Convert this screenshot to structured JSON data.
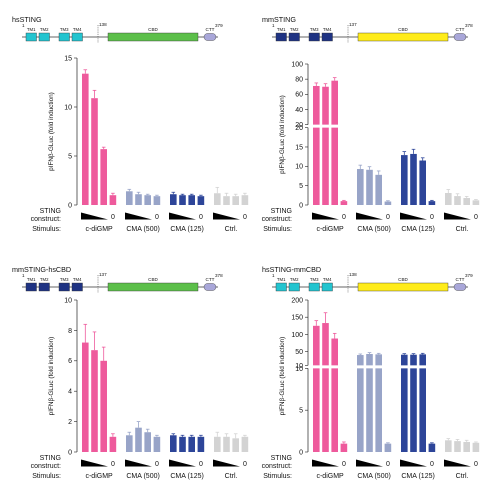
{
  "colors": {
    "cyan": "#22c4cf",
    "navy": "#1f3383",
    "green": "#5cbf4a",
    "yellow": "#ffec1a",
    "lavender": "#a9a7d9",
    "pink": "#ee5a9c",
    "slate": "#98a4c8",
    "blue": "#2d4599",
    "grey": "#d3d3d3"
  },
  "chart_data": [
    {
      "type": "bar",
      "construct": "hsSTING",
      "domains": {
        "tm": [
          "TM1",
          "TM2",
          "TM3",
          "TM4"
        ],
        "tm_colors": [
          "cyan",
          "cyan",
          "cyan",
          "cyan"
        ],
        "cbd_label": "CBD",
        "cbd_color": "green",
        "ctt_label": "CTT",
        "start": "1",
        "cut": "138",
        "end": "379"
      },
      "ylabel": "pIFNβ-GLuc (fold induction)",
      "yticks": [
        "0",
        "5",
        "10",
        "15"
      ],
      "ylim": [
        0,
        15
      ],
      "broken_axis": false,
      "groups": [
        {
          "name": "c-diGMP",
          "color": "pink",
          "values": [
            13.4,
            10.9,
            5.7,
            1.0
          ],
          "errors": [
            0.4,
            0.8,
            0.2,
            0.2
          ]
        },
        {
          "name": "CMA (500)",
          "color": "slate",
          "values": [
            1.4,
            1.1,
            1.0,
            0.9
          ],
          "errors": [
            0.2,
            0.2,
            0.1,
            0.1
          ]
        },
        {
          "name": "CMA (125)",
          "color": "blue",
          "values": [
            1.1,
            1.0,
            1.0,
            0.9
          ],
          "errors": [
            0.2,
            0.1,
            0.1,
            0.1
          ]
        },
        {
          "name": "Ctrl.",
          "color": "grey",
          "values": [
            1.2,
            0.9,
            0.9,
            1.0
          ],
          "errors": [
            0.6,
            0.3,
            0.2,
            0.2
          ]
        }
      ],
      "row_labels": [
        "STING",
        "construct:",
        "Stimulus:"
      ],
      "zero_label": "0"
    },
    {
      "type": "bar",
      "construct": "mmSTING",
      "domains": {
        "tm": [
          "TM1",
          "TM2",
          "TM3",
          "TM4"
        ],
        "tm_colors": [
          "navy",
          "navy",
          "navy",
          "navy"
        ],
        "cbd_label": "CBD",
        "cbd_color": "yellow",
        "ctt_label": "CTT",
        "start": "1",
        "cut": "137",
        "end": "378"
      },
      "ylabel": "pIFNβ-GLuc (fold induction)",
      "yticks_upper": [
        "20",
        "40",
        "60",
        "80",
        "100"
      ],
      "yticks_lower": [
        "0",
        "5",
        "10",
        "15",
        "20"
      ],
      "ylim_upper": [
        20,
        100
      ],
      "ylim_lower": [
        0,
        20
      ],
      "broken_axis": true,
      "groups": [
        {
          "name": "c-diGMP",
          "color": "pink",
          "values": [
            71,
            70,
            78,
            1.0
          ],
          "errors": [
            4,
            4,
            4,
            0.2
          ]
        },
        {
          "name": "CMA (500)",
          "color": "slate",
          "values": [
            9.3,
            9.1,
            7.8,
            0.9
          ],
          "errors": [
            1.0,
            0.8,
            1.0,
            0.2
          ]
        },
        {
          "name": "CMA (125)",
          "color": "blue",
          "values": [
            12.9,
            13.2,
            11.5,
            1.0
          ],
          "errors": [
            0.9,
            1.2,
            0.7,
            0.2
          ]
        },
        {
          "name": "Ctrl.",
          "color": "grey",
          "values": [
            3.1,
            2.3,
            1.8,
            1.2
          ],
          "errors": [
            0.9,
            0.6,
            0.4,
            0.2
          ]
        }
      ],
      "row_labels": [
        "STING",
        "construct:",
        "Stimulus:"
      ],
      "zero_label": "0"
    },
    {
      "type": "bar",
      "construct": "mmSTING-hsCBD",
      "domains": {
        "tm": [
          "TM1",
          "TM2",
          "TM3",
          "TM4"
        ],
        "tm_colors": [
          "navy",
          "navy",
          "navy",
          "navy"
        ],
        "cbd_label": "CBD",
        "cbd_color": "green",
        "ctt_label": "CTT",
        "start": "1",
        "cut": "137",
        "end": "378"
      },
      "ylabel": "pIFNβ-GLuc (fold induction)",
      "yticks": [
        "0",
        "2",
        "4",
        "6",
        "8",
        "10"
      ],
      "ylim": [
        0,
        10
      ],
      "broken_axis": false,
      "groups": [
        {
          "name": "c-diGMP",
          "color": "pink",
          "values": [
            7.2,
            6.7,
            6.0,
            1.0
          ],
          "errors": [
            1.2,
            1.2,
            0.9,
            0.2
          ]
        },
        {
          "name": "CMA (500)",
          "color": "slate",
          "values": [
            1.1,
            1.6,
            1.3,
            1.0
          ],
          "errors": [
            0.2,
            0.4,
            0.2,
            0.1
          ]
        },
        {
          "name": "CMA (125)",
          "color": "blue",
          "values": [
            1.1,
            1.0,
            1.0,
            1.0
          ],
          "errors": [
            0.1,
            0.1,
            0.1,
            0.1
          ]
        },
        {
          "name": "Ctrl.",
          "color": "grey",
          "values": [
            1.0,
            1.0,
            0.9,
            1.0
          ],
          "errors": [
            0.3,
            0.2,
            0.3,
            0.1
          ]
        }
      ],
      "row_labels": [
        "STING",
        "construct:",
        "Stimulus:"
      ],
      "zero_label": "0"
    },
    {
      "type": "bar",
      "construct": "hsSTING-mmCBD",
      "domains": {
        "tm": [
          "TM1",
          "TM2",
          "TM3",
          "TM4"
        ],
        "tm_colors": [
          "cyan",
          "cyan",
          "cyan",
          "cyan"
        ],
        "cbd_label": "CBD",
        "cbd_color": "yellow",
        "ctt_label": "CTT",
        "start": "1",
        "cut": "138",
        "end": "379"
      },
      "ylabel": "pIFNβ-GLuc (fold induction)",
      "yticks_upper": [
        "10",
        "50",
        "100",
        "150",
        "200"
      ],
      "yticks_lower": [
        "0",
        "5",
        "10"
      ],
      "ylim_upper": [
        10,
        200
      ],
      "ylim_lower": [
        0,
        10
      ],
      "broken_axis": true,
      "groups": [
        {
          "name": "c-diGMP",
          "color": "pink",
          "values": [
            125,
            133,
            88,
            1.0
          ],
          "errors": [
            15,
            30,
            15,
            0.2
          ]
        },
        {
          "name": "CMA (500)",
          "color": "slate",
          "values": [
            40,
            43,
            42,
            1.0
          ],
          "errors": [
            3,
            4,
            3,
            0.1
          ]
        },
        {
          "name": "CMA (125)",
          "color": "blue",
          "values": [
            41,
            41,
            42,
            1.0
          ],
          "errors": [
            3,
            3,
            3,
            0.1
          ]
        },
        {
          "name": "Ctrl.",
          "color": "grey",
          "values": [
            1.4,
            1.3,
            1.2,
            1.1
          ],
          "errors": [
            0.2,
            0.2,
            0.2,
            0.1
          ]
        }
      ],
      "row_labels": [
        "STING",
        "construct:",
        "Stimulus:"
      ],
      "zero_label": "0"
    }
  ]
}
